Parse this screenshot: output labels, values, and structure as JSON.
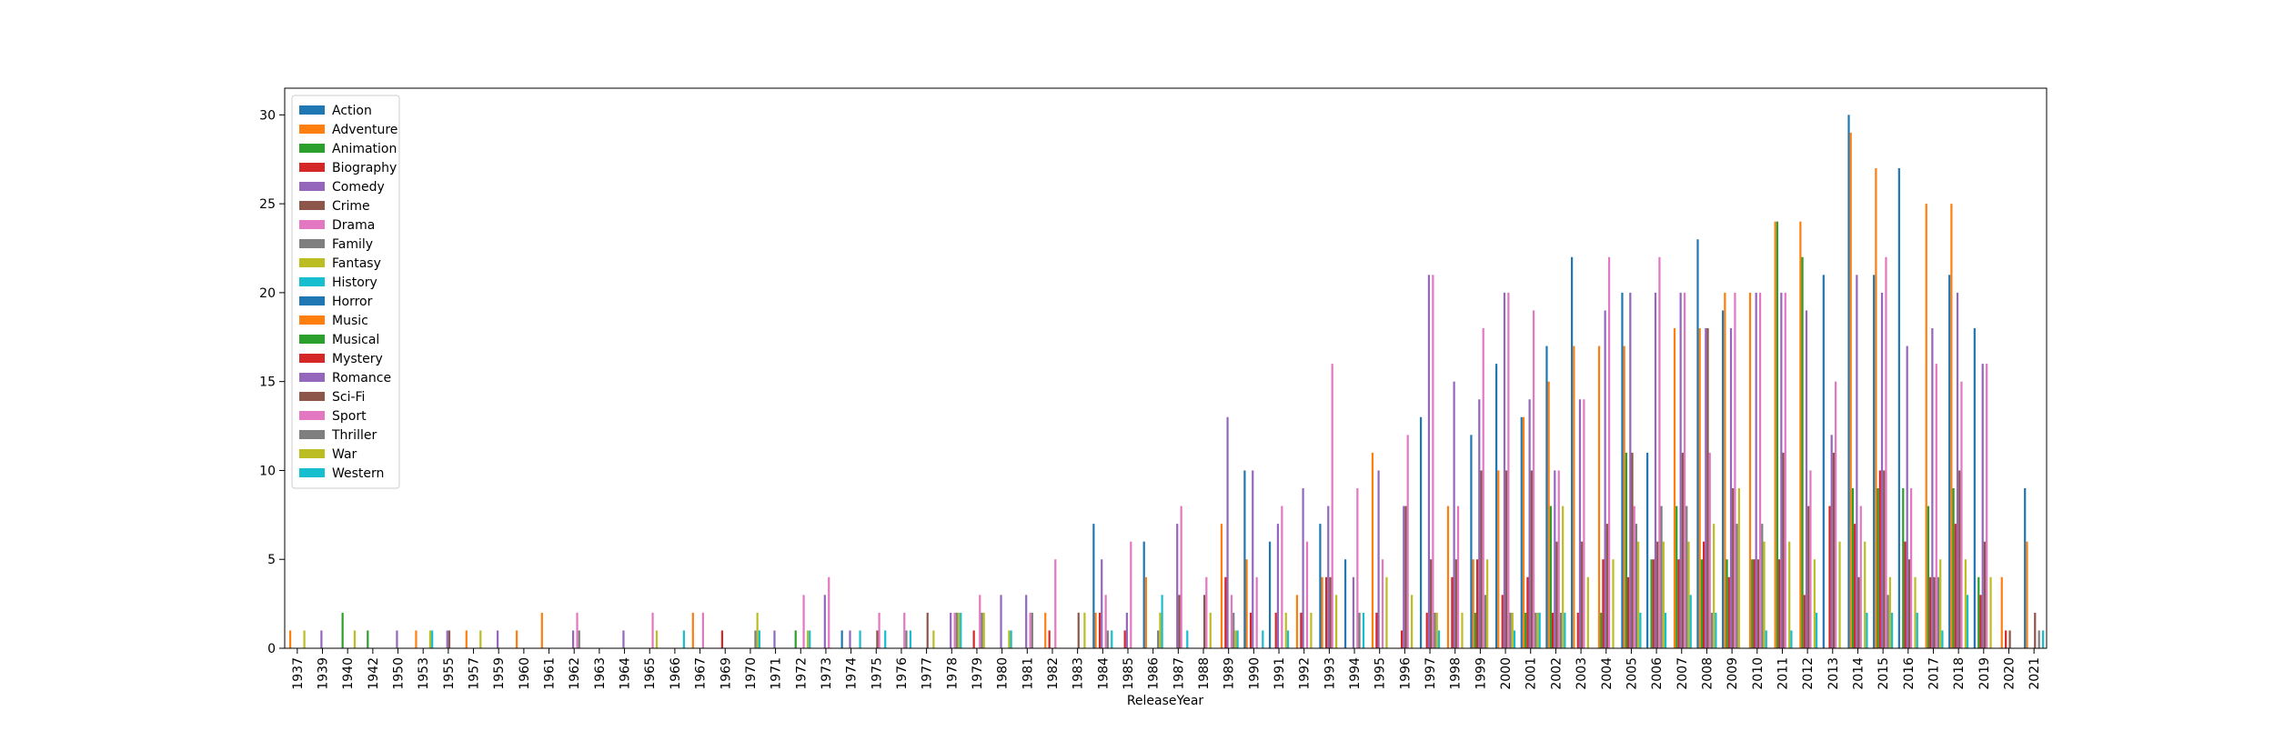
{
  "chart_data": {
    "type": "bar",
    "xlabel": "ReleaseYear",
    "ylabel": "",
    "ylim": [
      0,
      31.5
    ],
    "yticks": [
      0,
      5,
      10,
      15,
      20,
      25,
      30
    ],
    "grid": false,
    "legend_position": "top-left",
    "categories": [
      "1937",
      "1939",
      "1940",
      "1942",
      "1950",
      "1953",
      "1955",
      "1957",
      "1959",
      "1960",
      "1961",
      "1962",
      "1963",
      "1964",
      "1965",
      "1966",
      "1967",
      "1969",
      "1970",
      "1971",
      "1972",
      "1973",
      "1974",
      "1975",
      "1976",
      "1977",
      "1978",
      "1979",
      "1980",
      "1981",
      "1982",
      "1983",
      "1984",
      "1985",
      "1986",
      "1987",
      "1988",
      "1989",
      "1990",
      "1991",
      "1992",
      "1993",
      "1994",
      "1995",
      "1996",
      "1997",
      "1998",
      "1999",
      "2000",
      "2001",
      "2002",
      "2003",
      "2004",
      "2005",
      "2006",
      "2007",
      "2008",
      "2009",
      "2010",
      "2011",
      "2012",
      "2013",
      "2014",
      "2015",
      "2016",
      "2017",
      "2018",
      "2019",
      "2020",
      "2021"
    ],
    "series": [
      {
        "name": "Action",
        "color": "#1f77b4",
        "values": [
          0,
          0,
          0,
          0,
          0,
          0,
          0,
          0,
          0,
          0,
          0,
          0,
          0,
          0,
          0,
          0,
          0,
          0,
          0,
          0,
          0,
          0,
          1,
          0,
          0,
          0,
          0,
          0,
          0,
          0,
          0,
          0,
          7,
          0,
          6,
          0,
          0,
          0,
          10,
          6,
          0,
          7,
          5,
          0,
          0,
          13,
          0,
          12,
          16,
          13,
          17,
          22,
          0,
          20,
          11,
          0,
          23,
          19,
          0,
          0,
          0,
          21,
          30,
          21,
          27,
          0,
          21,
          18,
          0,
          9
        ]
      },
      {
        "name": "Adventure",
        "color": "#ff7f0e",
        "values": [
          1,
          0,
          0,
          0,
          0,
          1,
          0,
          1,
          0,
          1,
          2,
          0,
          0,
          0,
          0,
          0,
          2,
          0,
          0,
          0,
          0,
          0,
          0,
          0,
          0,
          0,
          0,
          0,
          0,
          0,
          2,
          0,
          2,
          0,
          4,
          0,
          0,
          7,
          5,
          0,
          3,
          4,
          0,
          11,
          0,
          0,
          8,
          5,
          10,
          13,
          15,
          17,
          17,
          17,
          0,
          18,
          18,
          20,
          20,
          24,
          24,
          0,
          29,
          27,
          0,
          25,
          25,
          0,
          4,
          6
        ]
      },
      {
        "name": "Animation",
        "color": "#2ca02c",
        "values": [
          0,
          0,
          2,
          1,
          0,
          0,
          0,
          0,
          0,
          0,
          0,
          0,
          0,
          0,
          0,
          0,
          0,
          0,
          0,
          0,
          1,
          0,
          0,
          0,
          0,
          0,
          0,
          0,
          0,
          0,
          0,
          0,
          0,
          0,
          0,
          0,
          0,
          0,
          0,
          0,
          0,
          0,
          0,
          0,
          0,
          0,
          0,
          2,
          0,
          2,
          8,
          0,
          2,
          11,
          5,
          8,
          5,
          5,
          5,
          24,
          22,
          0,
          9,
          9,
          9,
          8,
          9,
          4,
          0,
          0
        ]
      },
      {
        "name": "Biography",
        "color": "#d62728",
        "values": [
          0,
          0,
          0,
          0,
          0,
          0,
          0,
          0,
          0,
          0,
          0,
          0,
          0,
          0,
          0,
          0,
          0,
          1,
          0,
          0,
          0,
          0,
          0,
          0,
          0,
          0,
          0,
          1,
          0,
          0,
          1,
          0,
          2,
          1,
          0,
          0,
          0,
          4,
          2,
          2,
          2,
          4,
          0,
          2,
          1,
          2,
          4,
          5,
          3,
          4,
          2,
          2,
          5,
          4,
          5,
          5,
          6,
          4,
          5,
          5,
          3,
          8,
          7,
          10,
          6,
          4,
          7,
          3,
          1,
          0
        ]
      },
      {
        "name": "Comedy",
        "color": "#9467bd",
        "values": [
          0,
          1,
          0,
          0,
          1,
          0,
          1,
          0,
          1,
          0,
          0,
          1,
          0,
          1,
          0,
          0,
          0,
          0,
          0,
          1,
          0,
          3,
          1,
          0,
          0,
          0,
          2,
          0,
          3,
          3,
          0,
          0,
          5,
          2,
          0,
          7,
          0,
          13,
          10,
          7,
          9,
          8,
          4,
          10,
          8,
          21,
          15,
          14,
          20,
          14,
          10,
          14,
          19,
          20,
          20,
          20,
          18,
          18,
          20,
          20,
          19,
          12,
          21,
          20,
          17,
          18,
          20,
          16,
          0,
          0
        ]
      },
      {
        "name": "Crime",
        "color": "#8c564b",
        "values": [
          0,
          0,
          0,
          0,
          0,
          0,
          1,
          0,
          0,
          0,
          0,
          0,
          0,
          0,
          0,
          0,
          0,
          0,
          0,
          0,
          0,
          0,
          0,
          1,
          0,
          2,
          0,
          0,
          0,
          0,
          0,
          2,
          0,
          0,
          0,
          3,
          3,
          0,
          0,
          0,
          0,
          4,
          0,
          0,
          8,
          5,
          5,
          10,
          10,
          10,
          6,
          6,
          7,
          11,
          6,
          11,
          18,
          9,
          5,
          11,
          8,
          11,
          4,
          10,
          5,
          4,
          10,
          6,
          1,
          2
        ]
      },
      {
        "name": "Drama",
        "color": "#e377c2",
        "values": [
          0,
          0,
          0,
          0,
          0,
          0,
          0,
          0,
          0,
          0,
          0,
          2,
          0,
          0,
          2,
          0,
          2,
          0,
          0,
          0,
          3,
          4,
          0,
          2,
          2,
          0,
          2,
          3,
          0,
          2,
          5,
          0,
          3,
          6,
          0,
          8,
          4,
          3,
          4,
          8,
          6,
          16,
          9,
          5,
          12,
          21,
          8,
          18,
          20,
          19,
          10,
          14,
          22,
          8,
          22,
          20,
          11,
          20,
          20,
          20,
          10,
          15,
          8,
          22,
          9,
          16,
          15,
          16,
          0,
          0
        ]
      },
      {
        "name": "Family",
        "color": "#7f7f7f",
        "values": [
          0,
          0,
          0,
          0,
          0,
          0,
          0,
          0,
          0,
          0,
          0,
          1,
          0,
          0,
          0,
          0,
          0,
          0,
          1,
          0,
          0,
          0,
          0,
          0,
          1,
          0,
          2,
          2,
          0,
          2,
          0,
          0,
          1,
          0,
          1,
          0,
          0,
          2,
          0,
          0,
          0,
          0,
          2,
          0,
          0,
          2,
          0,
          3,
          2,
          2,
          2,
          0,
          0,
          7,
          8,
          8,
          2,
          7,
          7,
          0,
          0,
          0,
          0,
          3,
          0,
          4,
          0,
          0,
          0,
          1
        ]
      },
      {
        "name": "Fantasy",
        "color": "#bcbd22",
        "values": [
          1,
          0,
          1,
          0,
          0,
          1,
          0,
          1,
          0,
          0,
          0,
          0,
          0,
          0,
          1,
          0,
          0,
          0,
          2,
          0,
          1,
          0,
          0,
          0,
          0,
          1,
          2,
          2,
          1,
          0,
          0,
          2,
          0,
          0,
          2,
          0,
          2,
          1,
          0,
          2,
          2,
          3,
          0,
          4,
          3,
          2,
          2,
          5,
          2,
          2,
          8,
          4,
          5,
          6,
          6,
          6,
          7,
          9,
          6,
          6,
          5,
          6,
          6,
          4,
          4,
          5,
          5,
          4,
          0,
          0
        ]
      },
      {
        "name": "History",
        "color": "#17becf",
        "values": [
          0,
          0,
          0,
          0,
          0,
          1,
          0,
          0,
          0,
          0,
          0,
          0,
          0,
          0,
          0,
          1,
          0,
          0,
          1,
          0,
          1,
          0,
          1,
          1,
          1,
          0,
          2,
          0,
          1,
          0,
          0,
          0,
          1,
          0,
          3,
          1,
          0,
          1,
          1,
          1,
          0,
          0,
          2,
          0,
          0,
          1,
          0,
          0,
          1,
          2,
          2,
          0,
          0,
          2,
          2,
          3,
          2,
          0,
          1,
          1,
          2,
          0,
          2,
          2,
          2,
          1,
          3,
          0,
          0,
          1
        ]
      }
    ]
  }
}
